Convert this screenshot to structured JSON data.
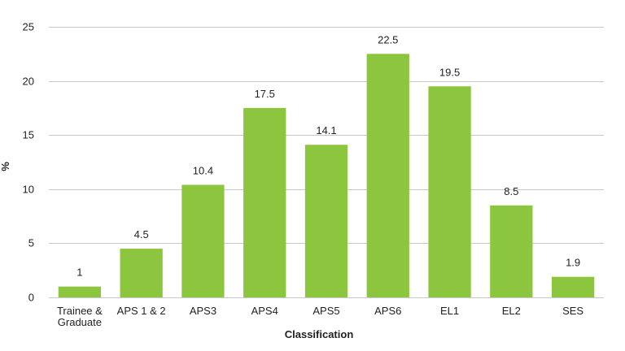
{
  "chart_data": {
    "type": "bar",
    "title": "",
    "xlabel": "Classification",
    "ylabel": "%",
    "ylim": [
      0,
      25
    ],
    "yticks": [
      0,
      5,
      10,
      15,
      20,
      25
    ],
    "grid": true,
    "legend": "none",
    "bar_color": "#8cc63f",
    "categories": [
      [
        "Trainee &",
        "Graduate"
      ],
      [
        "APS 1 & 2"
      ],
      [
        "APS3"
      ],
      [
        "APS4"
      ],
      [
        "APS5"
      ],
      [
        "APS6"
      ],
      [
        "EL1"
      ],
      [
        "EL2"
      ],
      [
        "SES"
      ]
    ],
    "values": [
      1,
      4.5,
      10.4,
      17.5,
      14.1,
      22.5,
      19.5,
      8.5,
      1.9
    ]
  }
}
